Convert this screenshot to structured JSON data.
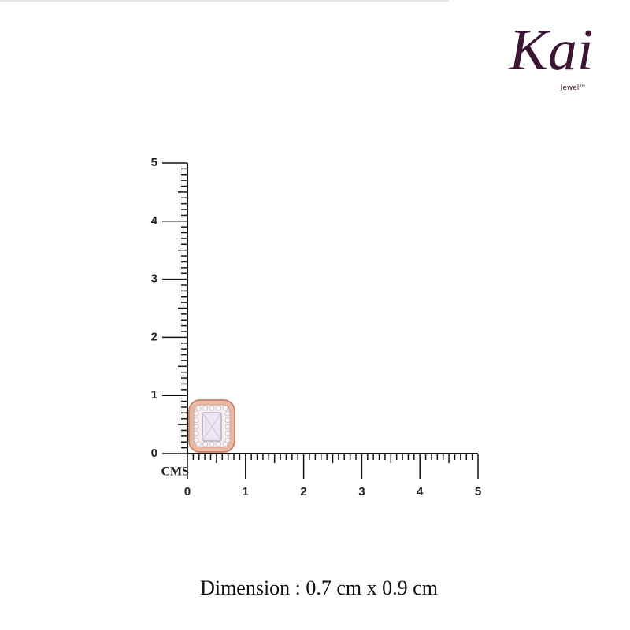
{
  "logo": {
    "brand": "Kai",
    "sub": "Jewel™"
  },
  "ruler": {
    "unit": "CMS",
    "y_labels": [
      "0",
      "1",
      "2",
      "3",
      "4",
      "5"
    ],
    "x_labels": [
      "0",
      "1",
      "2",
      "3",
      "4",
      "5"
    ]
  },
  "caption": "Dimension : 0.7 cm x 0.9 cm"
}
